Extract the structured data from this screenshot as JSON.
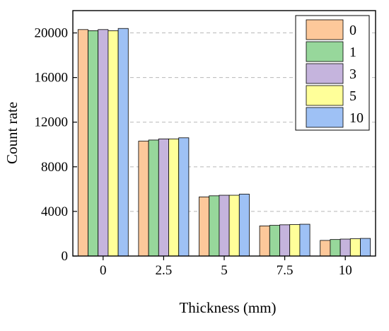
{
  "chart_data": {
    "type": "bar",
    "title": "",
    "xlabel": "Thickness (mm)",
    "ylabel": "Count rate",
    "categories": [
      "0",
      "2.5",
      "5",
      "7.5",
      "10"
    ],
    "series": [
      {
        "name": "0",
        "values": [
          20300,
          10300,
          5300,
          2700,
          1400
        ],
        "color": "#FDC89A"
      },
      {
        "name": "1",
        "values": [
          20200,
          10400,
          5400,
          2750,
          1480
        ],
        "color": "#97D79B"
      },
      {
        "name": "3",
        "values": [
          20300,
          10500,
          5450,
          2800,
          1520
        ],
        "color": "#C5B4DD"
      },
      {
        "name": "5",
        "values": [
          20200,
          10500,
          5450,
          2820,
          1550
        ],
        "color": "#FFFF99"
      },
      {
        "name": "10",
        "values": [
          20400,
          10600,
          5550,
          2850,
          1580
        ],
        "color": "#9EC1F5"
      }
    ],
    "yticks": [
      0,
      4000,
      8000,
      12000,
      16000,
      20000
    ],
    "ylim": [
      0,
      22000
    ],
    "grid": "horizontal dashed",
    "legend_position": "top-right"
  }
}
